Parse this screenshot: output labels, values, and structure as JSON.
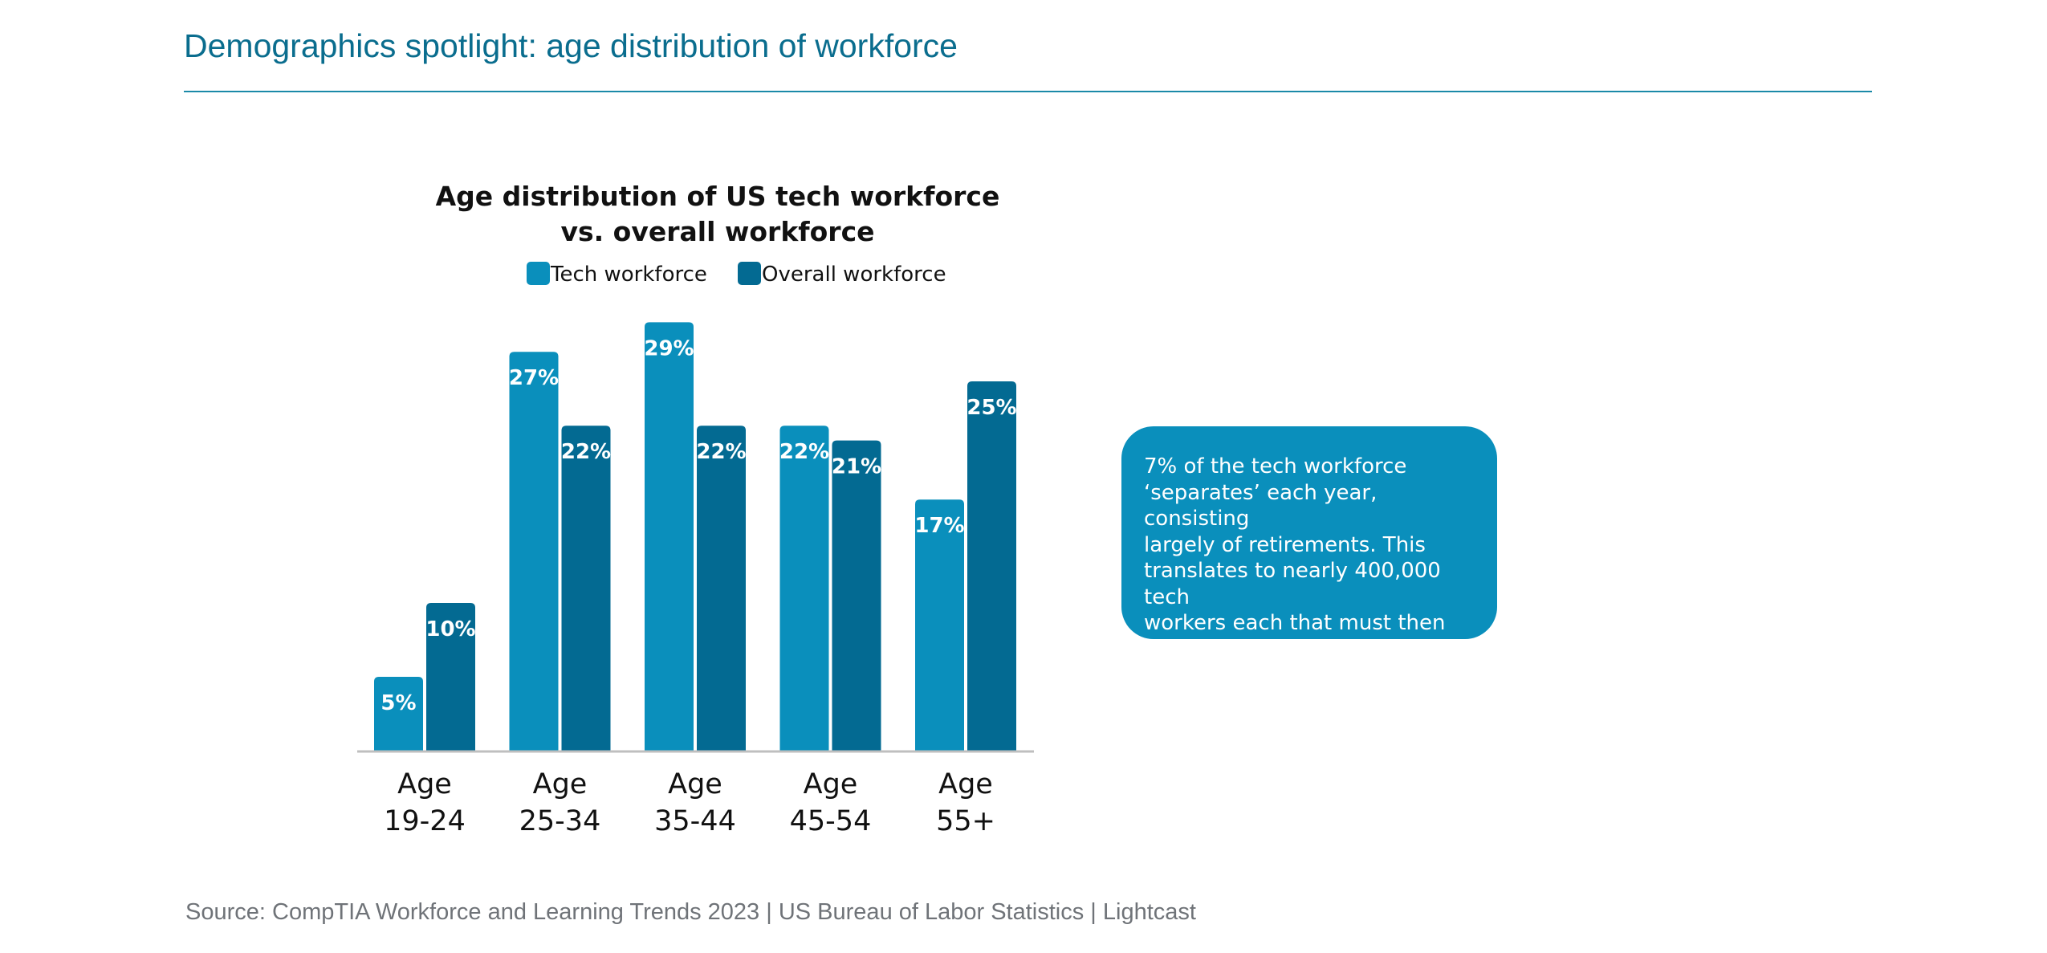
{
  "header": {
    "title": "Demographics spotlight: age distribution of workforce"
  },
  "chart_data": {
    "type": "bar",
    "title_lines": [
      "Age distribution of US tech workforce",
      "vs. overall workforce"
    ],
    "categories": [
      [
        "Age",
        "19-24"
      ],
      [
        "Age",
        "25-34"
      ],
      [
        "Age",
        "35-44"
      ],
      [
        "Age",
        "45-54"
      ],
      [
        "Age",
        "55+"
      ]
    ],
    "series": [
      {
        "name": "Tech workforce",
        "color": "#0a8fbc",
        "values": [
          5,
          27,
          29,
          22,
          17
        ],
        "labels": [
          "5%",
          "27%",
          "29%",
          "22%",
          "17%"
        ]
      },
      {
        "name": "Overall workforce",
        "color": "#036a92",
        "values": [
          10,
          22,
          22,
          21,
          25
        ],
        "labels": [
          "10%",
          "22%",
          "22%",
          "21%",
          "25%"
        ]
      }
    ],
    "legend_position": "top",
    "grid": false,
    "ylim": [
      0,
      29
    ]
  },
  "callout": {
    "text": "7% of the tech workforce\n‘separates’ each year, consisting\nlargely of retirements. This\ntranslates to nearly 400,000 tech\nworkers each that must then be\nbackfilled by employers annually.",
    "color": "#0a8fbc"
  },
  "footer": {
    "source": "Source: CompTIA Workforce and Learning Trends 2023 | US Bureau of Labor Statistics | Lightcast"
  }
}
